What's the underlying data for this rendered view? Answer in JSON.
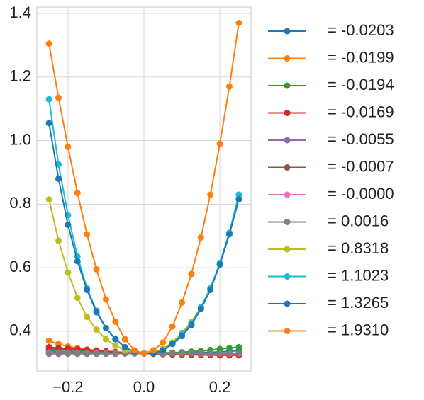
{
  "chart_data": {
    "type": "line",
    "x": [
      -0.25,
      -0.225,
      -0.2,
      -0.175,
      -0.15,
      -0.125,
      -0.1,
      -0.075,
      -0.05,
      -0.025,
      0,
      0.025,
      0.05,
      0.075,
      0.1,
      0.125,
      0.15,
      0.175,
      0.2,
      0.225,
      0.25
    ],
    "xlim": [
      -0.282,
      0.282
    ],
    "xticks": [
      {
        "value": -0.2,
        "label": "−0.2"
      },
      {
        "value": 0,
        "label": "0.0"
      },
      0.2
    ],
    "ylim": [
      0.275,
      1.42
    ],
    "yticks": [
      0.4,
      0.6,
      0.8,
      {
        "value": 1,
        "label": "1.0"
      },
      1.2,
      1.4
    ],
    "grid": true,
    "legend": "outside right",
    "series": [
      {
        "name": "= -0.0203",
        "color": "#1f77b4",
        "values": [
          0.345,
          0.343,
          0.341,
          0.34,
          0.338,
          0.337,
          0.336,
          0.334,
          0.333,
          0.331,
          0.33,
          0.33,
          0.33,
          0.331,
          0.331,
          0.332,
          0.333,
          0.334,
          0.335,
          0.337,
          0.339
        ]
      },
      {
        "name": "= -0.0199",
        "color": "#ff7f0e",
        "values": [
          0.37,
          0.36,
          0.352,
          0.347,
          0.343,
          0.34,
          0.337,
          0.335,
          0.333,
          0.331,
          0.33,
          0.329,
          0.328,
          0.327,
          0.326,
          0.326,
          0.325,
          0.325,
          0.324,
          0.324,
          0.324
        ]
      },
      {
        "name": "= -0.0194",
        "color": "#2ca02c",
        "values": [
          0.338,
          0.337,
          0.336,
          0.335,
          0.334,
          0.333,
          0.332,
          0.331,
          0.331,
          0.33,
          0.33,
          0.331,
          0.332,
          0.333,
          0.334,
          0.336,
          0.338,
          0.341,
          0.344,
          0.347,
          0.35
        ]
      },
      {
        "name": "= -0.0169",
        "color": "#d62728",
        "values": [
          0.35,
          0.347,
          0.345,
          0.343,
          0.341,
          0.339,
          0.337,
          0.335,
          0.333,
          0.331,
          0.33,
          0.329,
          0.328,
          0.327,
          0.327,
          0.326,
          0.326,
          0.325,
          0.325,
          0.325,
          0.325
        ]
      },
      {
        "name": "= -0.0055",
        "color": "#9467bd",
        "values": [
          0.333,
          0.333,
          0.333,
          0.332,
          0.332,
          0.332,
          0.331,
          0.331,
          0.331,
          0.33,
          0.33,
          0.33,
          0.33,
          0.33,
          0.33,
          0.33,
          0.33,
          0.33,
          0.33,
          0.33,
          0.33
        ]
      },
      {
        "name": "= -0.0007",
        "color": "#8c564b",
        "values": [
          0.331,
          0.331,
          0.331,
          0.331,
          0.331,
          0.331,
          0.33,
          0.33,
          0.33,
          0.33,
          0.33,
          0.33,
          0.33,
          0.33,
          0.33,
          0.33,
          0.33,
          0.33,
          0.33,
          0.33,
          0.33
        ]
      },
      {
        "name": "= -0.0000",
        "color": "#e377c2",
        "values": [
          0.33,
          0.33,
          0.33,
          0.33,
          0.33,
          0.33,
          0.33,
          0.33,
          0.33,
          0.33,
          0.33,
          0.33,
          0.33,
          0.33,
          0.33,
          0.33,
          0.33,
          0.33,
          0.33,
          0.33,
          0.33
        ]
      },
      {
        "name": "= 0.0016",
        "color": "#7f7f7f",
        "values": [
          0.329,
          0.329,
          0.329,
          0.329,
          0.329,
          0.329,
          0.329,
          0.329,
          0.33,
          0.33,
          0.33,
          0.33,
          0.33,
          0.33,
          0.33,
          0.33,
          0.331,
          0.331,
          0.331,
          0.331,
          0.331
        ]
      },
      {
        "name": "= 0.8318",
        "color": "#bcbd22",
        "values": [
          0.815,
          0.685,
          0.585,
          0.505,
          0.445,
          0.405,
          0.375,
          0.355,
          0.34,
          0.333,
          0.33,
          0.333,
          0.345,
          0.365,
          0.395,
          0.43,
          0.475,
          0.535,
          0.61,
          0.705,
          0.82
        ]
      },
      {
        "name": "= 1.1023",
        "color": "#17becf",
        "values": [
          1.13,
          0.925,
          0.765,
          0.635,
          0.535,
          0.465,
          0.41,
          0.375,
          0.35,
          0.335,
          0.33,
          0.33,
          0.34,
          0.36,
          0.39,
          0.425,
          0.475,
          0.535,
          0.615,
          0.71,
          0.83
        ]
      },
      {
        "name": "= 1.3265",
        "color": "#1f77b4",
        "values": [
          1.055,
          0.88,
          0.735,
          0.62,
          0.53,
          0.46,
          0.41,
          0.375,
          0.35,
          0.335,
          0.33,
          0.33,
          0.34,
          0.36,
          0.385,
          0.42,
          0.47,
          0.53,
          0.61,
          0.705,
          0.815
        ]
      },
      {
        "name": "= 1.9310",
        "color": "#ff7f0e",
        "values": [
          1.305,
          1.135,
          0.98,
          0.835,
          0.705,
          0.595,
          0.5,
          0.43,
          0.375,
          0.34,
          0.33,
          0.34,
          0.365,
          0.415,
          0.49,
          0.58,
          0.695,
          0.83,
          0.99,
          1.17,
          1.37
        ]
      }
    ]
  }
}
